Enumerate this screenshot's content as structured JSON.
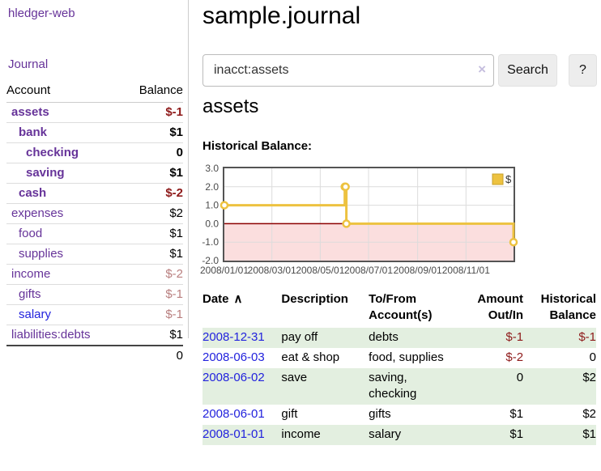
{
  "colors": {
    "purple": "#663399",
    "blue": "#2222dd",
    "neg": "#8e1a1a",
    "negMuted": "#b97f7f",
    "stripe": "#e3efe0",
    "gold": "#edc240",
    "goldBorder": "#c8a22c",
    "pink": "#fbdede",
    "zero": "#8b0000",
    "grid": "#dcdcdc",
    "chartBorder": "#545454",
    "axis": "#4a4a4a",
    "divider": "#cccccc",
    "rowline": "#dddddd",
    "btnBg": "#ededed",
    "btnBorder": "#e2e2e2",
    "clear": "#c5bede"
  },
  "app": {
    "brand": "hledger-web",
    "nav_journal": "Journal"
  },
  "sidebar": {
    "columns": {
      "account": "Account",
      "balance": "Balance"
    },
    "rows": [
      {
        "account": "assets",
        "balance": "$-1",
        "depth": 0,
        "bold": true,
        "balanceStyle": "neg",
        "link": "purple"
      },
      {
        "account": "bank",
        "balance": "$1",
        "depth": 1,
        "bold": true,
        "balanceStyle": "",
        "link": "purple"
      },
      {
        "account": "checking",
        "balance": "0",
        "depth": 2,
        "bold": true,
        "balanceStyle": "",
        "link": "purple"
      },
      {
        "account": "saving",
        "balance": "$1",
        "depth": 2,
        "bold": true,
        "balanceStyle": "",
        "link": "purple"
      },
      {
        "account": "cash",
        "balance": "$-2",
        "depth": 1,
        "bold": true,
        "balanceStyle": "neg",
        "link": "purple"
      },
      {
        "account": "expenses",
        "balance": "$2",
        "depth": 0,
        "bold": false,
        "balanceStyle": "",
        "link": "purple"
      },
      {
        "account": "food",
        "balance": "$1",
        "depth": 1,
        "bold": false,
        "balanceStyle": "",
        "link": "purple"
      },
      {
        "account": "supplies",
        "balance": "$1",
        "depth": 1,
        "bold": false,
        "balanceStyle": "",
        "link": "purple"
      },
      {
        "account": "income",
        "balance": "$-2",
        "depth": 0,
        "bold": false,
        "balanceStyle": "negMuted",
        "link": "purple"
      },
      {
        "account": "gifts",
        "balance": "$-1",
        "depth": 1,
        "bold": false,
        "balanceStyle": "negMuted",
        "link": "purple"
      },
      {
        "account": "salary",
        "balance": "$-1",
        "depth": 1,
        "bold": false,
        "balanceStyle": "negMuted",
        "link": "blue"
      },
      {
        "account": "liabilities:debts",
        "balance": "$1",
        "depth": 0,
        "bold": false,
        "balanceStyle": "",
        "link": "purple"
      }
    ],
    "total": "0"
  },
  "header": {
    "title": "sample.journal"
  },
  "search": {
    "value": "inacct:assets",
    "clear_icon": "×",
    "button_label": "Search",
    "help_label": "?"
  },
  "main": {
    "heading": "assets",
    "chart_label": "Historical Balance:"
  },
  "chart_data": {
    "type": "line",
    "step": true,
    "title": "Historical Balance",
    "x_start": "2008-01-01",
    "x_end": "2008-12-31",
    "xlim": [
      "2008-01-01",
      "2008-12-31"
    ],
    "ylim": [
      -2,
      3
    ],
    "grid": true,
    "x_ticks": [
      {
        "date": "2008-01-01",
        "label": "2008/01/01"
      },
      {
        "date": "2008-03-01",
        "label": "2008/03/01"
      },
      {
        "date": "2008-05-01",
        "label": "2008/05/01"
      },
      {
        "date": "2008-07-01",
        "label": "2008/07/01"
      },
      {
        "date": "2008-09-01",
        "label": "2008/09/01"
      },
      {
        "date": "2008-11-01",
        "label": "2008/11/01"
      }
    ],
    "y_ticks": [
      {
        "v": 3,
        "label": "3.0"
      },
      {
        "v": 2,
        "label": "2.0"
      },
      {
        "v": 1,
        "label": "1.0"
      },
      {
        "v": 0,
        "label": "0.0"
      },
      {
        "v": -1,
        "label": "-1.0"
      },
      {
        "v": -2,
        "label": "-2.0"
      }
    ],
    "legend": {
      "position": "top-right",
      "label": "$"
    },
    "series": [
      {
        "name": "$",
        "points": [
          {
            "date": "2008-01-01",
            "v": 1
          },
          {
            "date": "2008-06-01",
            "v": 2
          },
          {
            "date": "2008-06-02",
            "v": 2
          },
          {
            "date": "2008-06-03",
            "v": 0
          },
          {
            "date": "2008-12-31",
            "v": -1
          }
        ]
      }
    ]
  },
  "register": {
    "columns": [
      {
        "label": "Date",
        "sort": "∧",
        "align": "left"
      },
      {
        "label": "Description",
        "align": "left"
      },
      {
        "label": "To/From Account(s)",
        "align": "left"
      },
      {
        "label": "Amount Out/In",
        "align": "right"
      },
      {
        "label": "Historical Balance",
        "align": "right"
      }
    ],
    "rows": [
      {
        "date": "2008-12-31",
        "description": "pay off",
        "accounts": "debts",
        "amount": "$-1",
        "amountNeg": true,
        "balance": "$-1",
        "balanceNeg": true
      },
      {
        "date": "2008-06-03",
        "description": "eat & shop",
        "accounts": "food, supplies",
        "amount": "$-2",
        "amountNeg": true,
        "balance": "0",
        "balanceNeg": false
      },
      {
        "date": "2008-06-02",
        "description": "save",
        "accounts": "saving, checking",
        "amount": "0",
        "amountNeg": false,
        "balance": "$2",
        "balanceNeg": false
      },
      {
        "date": "2008-06-01",
        "description": "gift",
        "accounts": "gifts",
        "amount": "$1",
        "amountNeg": false,
        "balance": "$2",
        "balanceNeg": false
      },
      {
        "date": "2008-01-01",
        "description": "income",
        "accounts": "salary",
        "amount": "$1",
        "amountNeg": false,
        "balance": "$1",
        "balanceNeg": false
      }
    ]
  }
}
